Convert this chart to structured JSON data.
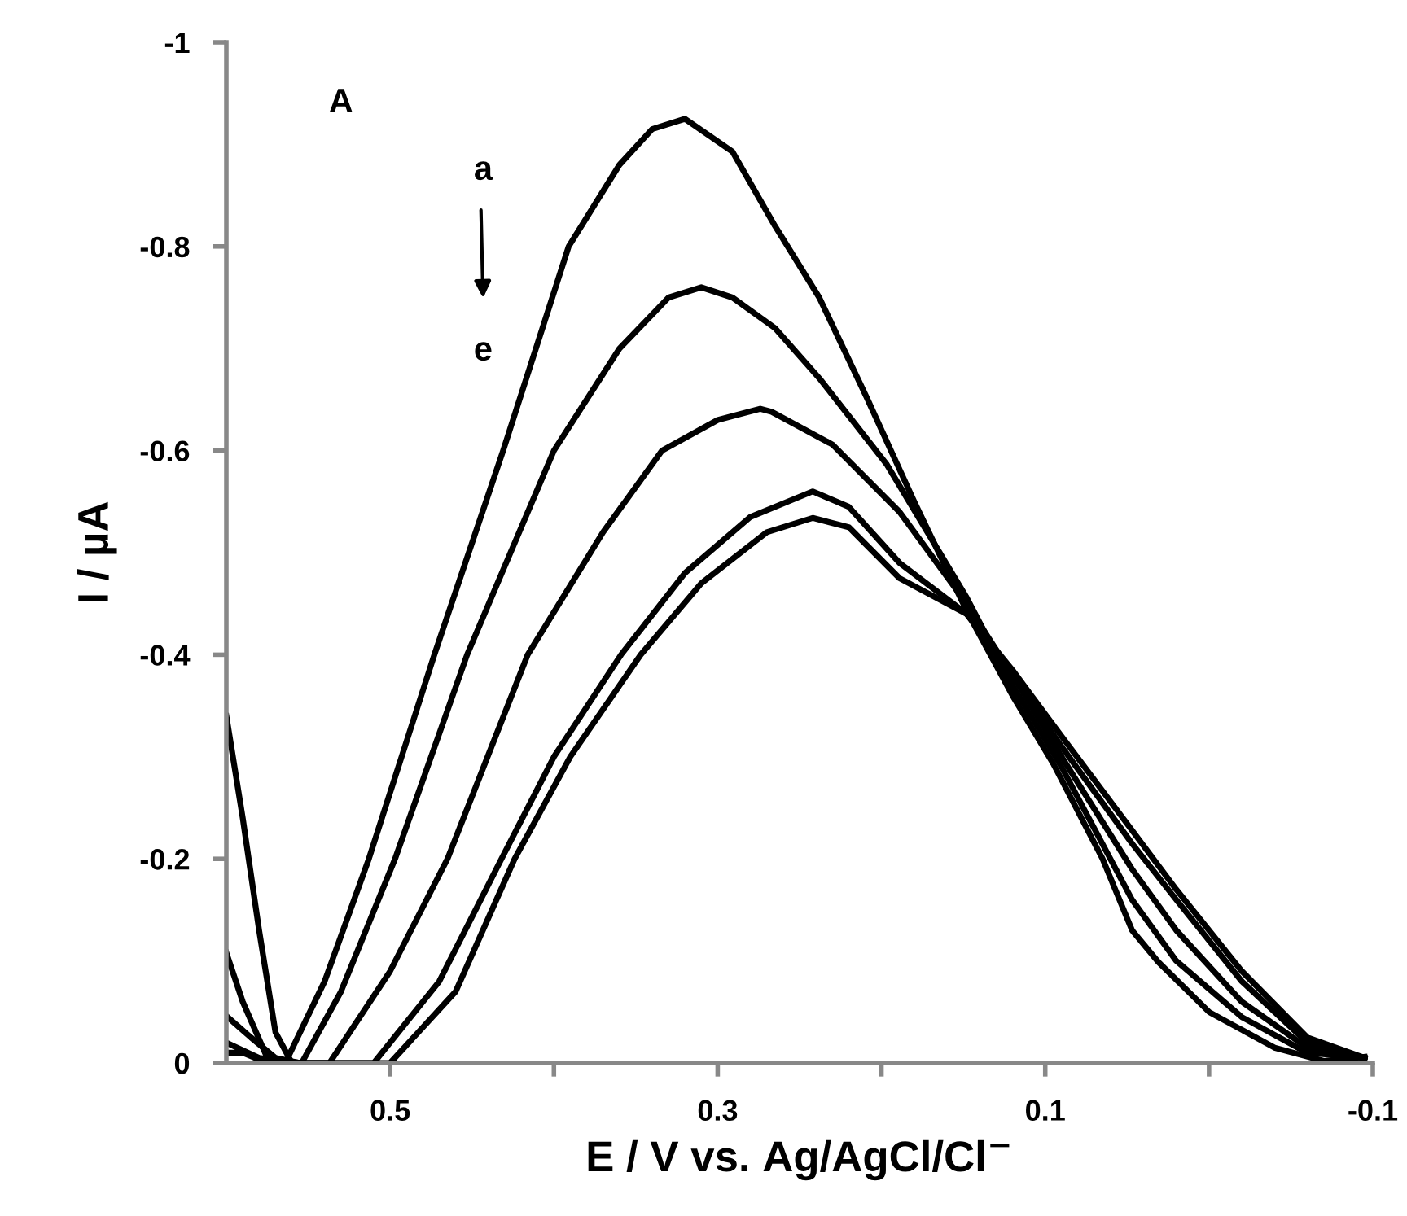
{
  "chart_data": {
    "type": "line",
    "xlabel": "E / V vs. Ag/AgCl/Cl$^{−}$",
    "ylabel": "I / µA",
    "annotations": [
      "A",
      "a",
      "e"
    ],
    "xlim": [
      0.6,
      -0.1
    ],
    "ylim": [
      0,
      -1
    ],
    "xticks": [
      0.5,
      {
        "value": 0.4,
        "label": null
      },
      0.3,
      {
        "value": 0.2,
        "label": null
      },
      0.1,
      {
        "value": 0,
        "label": null
      },
      -0.1
    ],
    "yticks": [
      0,
      -0.2,
      -0.4,
      -0.6,
      -0.8,
      -1
    ],
    "grid": false,
    "marker": "none",
    "line_style": "solid",
    "series": [
      {
        "color": "#000000",
        "x": [
          0.6,
          0.59,
          0.575,
          0.564,
          0.54,
          0.513,
          0.473,
          0.431,
          0.391,
          0.36,
          0.34,
          0.32,
          0.291,
          0.265,
          0.238,
          0.209,
          0.18,
          0.148,
          0.12,
          0.095,
          0.065,
          0.047,
          0.031,
          0.0,
          -0.04,
          -0.07,
          -0.095
        ],
        "values": [
          -0.01,
          -0.01,
          0.0,
          0.0,
          -0.08,
          -0.2,
          -0.4,
          -0.6,
          -0.8,
          -0.88,
          -0.915,
          -0.925,
          -0.893,
          -0.82,
          -0.75,
          -0.652,
          -0.55,
          -0.443,
          -0.36,
          -0.293,
          -0.2,
          -0.13,
          -0.099,
          -0.05,
          -0.015,
          -0.002,
          -0.006
        ]
      },
      {
        "color": "#000000",
        "x": [
          0.6,
          0.58,
          0.554,
          0.53,
          0.497,
          0.453,
          0.4,
          0.36,
          0.33,
          0.31,
          0.291,
          0.265,
          0.238,
          0.197,
          0.148,
          0.12,
          0.09,
          0.047,
          0.02,
          -0.02,
          -0.06,
          -0.095
        ],
        "values": [
          -0.02,
          -0.005,
          0.0,
          -0.07,
          -0.2,
          -0.4,
          -0.6,
          -0.7,
          -0.75,
          -0.76,
          -0.75,
          -0.72,
          -0.671,
          -0.587,
          -0.456,
          -0.37,
          -0.29,
          -0.16,
          -0.1,
          -0.045,
          -0.01,
          -0.005
        ]
      },
      {
        "color": "#000000",
        "x": [
          0.6,
          0.585,
          0.57,
          0.555,
          0.537,
          0.5,
          0.465,
          0.416,
          0.37,
          0.334,
          0.3,
          0.274,
          0.267,
          0.23,
          0.189,
          0.148,
          0.12,
          0.09,
          0.047,
          0.02,
          -0.02,
          -0.06,
          -0.095
        ],
        "values": [
          -0.046,
          -0.025,
          -0.005,
          0.0,
          0.0,
          -0.09,
          -0.2,
          -0.4,
          -0.52,
          -0.6,
          -0.63,
          -0.641,
          -0.638,
          -0.606,
          -0.54,
          -0.45,
          -0.38,
          -0.3,
          -0.19,
          -0.13,
          -0.06,
          -0.015,
          -0.005
        ]
      },
      {
        "color": "#000000",
        "x": [
          0.6,
          0.59,
          0.575,
          0.56,
          0.535,
          0.51,
          0.47,
          0.432,
          0.4,
          0.359,
          0.32,
          0.28,
          0.242,
          0.22,
          0.189,
          0.148,
          0.12,
          0.09,
          0.047,
          0.02,
          -0.02,
          -0.06,
          -0.095
        ],
        "values": [
          -0.108,
          -0.06,
          -0.005,
          0.0,
          0.0,
          0.0,
          -0.08,
          -0.2,
          -0.3,
          -0.4,
          -0.48,
          -0.535,
          -0.56,
          -0.545,
          -0.49,
          -0.44,
          -0.38,
          -0.31,
          -0.215,
          -0.16,
          -0.08,
          -0.02,
          -0.005
        ]
      },
      {
        "color": "#000000",
        "x": [
          0.6,
          0.59,
          0.58,
          0.57,
          0.56,
          0.53,
          0.5,
          0.46,
          0.424,
          0.39,
          0.347,
          0.31,
          0.27,
          0.242,
          0.22,
          0.189,
          0.148,
          0.12,
          0.09,
          0.047,
          0.02,
          -0.02,
          -0.06,
          -0.095
        ],
        "values": [
          -0.34,
          -0.24,
          -0.13,
          -0.03,
          0.0,
          0.0,
          0.0,
          -0.07,
          -0.2,
          -0.3,
          -0.4,
          -0.47,
          -0.52,
          -0.534,
          -0.525,
          -0.475,
          -0.44,
          -0.385,
          -0.32,
          -0.228,
          -0.17,
          -0.09,
          -0.025,
          -0.005
        ]
      }
    ]
  }
}
